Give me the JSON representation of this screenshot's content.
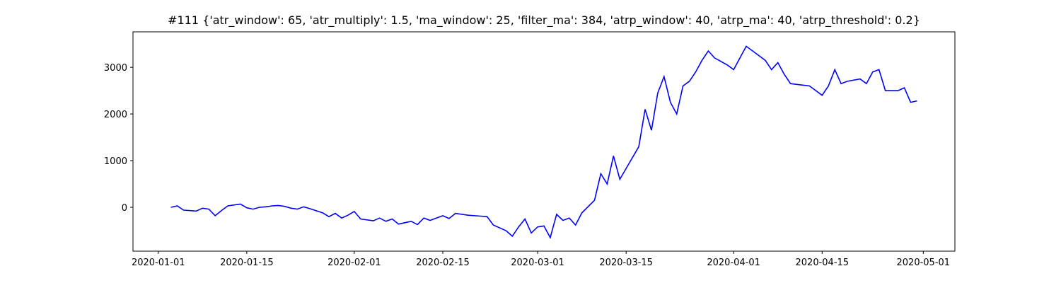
{
  "chart_data": {
    "type": "line",
    "title": "#111 {'atr_window': 65, 'atr_multiply': 1.5, 'ma_window': 25, 'filter_ma': 384, 'atrp_window': 40, 'atrp_ma': 40, 'atrp_threshold': 0.2}",
    "x": [
      "2020-01-03",
      "2020-01-04",
      "2020-01-05",
      "2020-01-07",
      "2020-01-08",
      "2020-01-09",
      "2020-01-10",
      "2020-01-11",
      "2020-01-12",
      "2020-01-13",
      "2020-01-14",
      "2020-01-15",
      "2020-01-16",
      "2020-01-17",
      "2020-01-18",
      "2020-01-19",
      "2020-01-20",
      "2020-01-21",
      "2020-01-22",
      "2020-01-23",
      "2020-01-24",
      "2020-01-25",
      "2020-01-27",
      "2020-01-28",
      "2020-01-29",
      "2020-01-30",
      "2020-01-31",
      "2020-02-01",
      "2020-02-02",
      "2020-02-04",
      "2020-02-05",
      "2020-02-06",
      "2020-02-07",
      "2020-02-08",
      "2020-02-10",
      "2020-02-11",
      "2020-02-12",
      "2020-02-13",
      "2020-02-15",
      "2020-02-16",
      "2020-02-17",
      "2020-02-19",
      "2020-02-21",
      "2020-02-22",
      "2020-02-23",
      "2020-02-25",
      "2020-02-26",
      "2020-02-27",
      "2020-02-28",
      "2020-02-29",
      "2020-03-01",
      "2020-03-02",
      "2020-03-03",
      "2020-03-04",
      "2020-03-05",
      "2020-03-06",
      "2020-03-07",
      "2020-03-08",
      "2020-03-10",
      "2020-03-11",
      "2020-03-12",
      "2020-03-13",
      "2020-03-14",
      "2020-03-17",
      "2020-03-18",
      "2020-03-19",
      "2020-03-20",
      "2020-03-21",
      "2020-03-22",
      "2020-03-23",
      "2020-03-24",
      "2020-03-25",
      "2020-03-26",
      "2020-03-27",
      "2020-03-28",
      "2020-03-29",
      "2020-03-31",
      "2020-04-01",
      "2020-04-02",
      "2020-04-03",
      "2020-04-04",
      "2020-04-06",
      "2020-04-07",
      "2020-04-08",
      "2020-04-09",
      "2020-04-10",
      "2020-04-13",
      "2020-04-14",
      "2020-04-15",
      "2020-04-16",
      "2020-04-17",
      "2020-04-18",
      "2020-04-19",
      "2020-04-21",
      "2020-04-22",
      "2020-04-23",
      "2020-04-24",
      "2020-04-25",
      "2020-04-27",
      "2020-04-28",
      "2020-04-29",
      "2020-04-30"
    ],
    "series": [
      {
        "color": "#0000ff",
        "values": [
          0,
          30,
          -60,
          -80,
          -20,
          -40,
          -180,
          -70,
          30,
          50,
          70,
          -10,
          -40,
          0,
          10,
          30,
          40,
          20,
          -20,
          -40,
          10,
          -30,
          -120,
          -200,
          -130,
          -230,
          -170,
          -90,
          -250,
          -290,
          -230,
          -300,
          -250,
          -360,
          -300,
          -370,
          -230,
          -280,
          -180,
          -240,
          -130,
          -170,
          -190,
          -200,
          -380,
          -500,
          -620,
          -420,
          -250,
          -550,
          -420,
          -400,
          -650,
          -150,
          -280,
          -230,
          -380,
          -120,
          150,
          720,
          500,
          1100,
          600,
          1300,
          2100,
          1650,
          2450,
          2800,
          2250,
          2000,
          2600,
          2700,
          2900,
          3150,
          3350,
          3200,
          3050,
          2950,
          3200,
          3450,
          3350,
          3150,
          2950,
          3100,
          2850,
          2650,
          2600,
          2500,
          2400,
          2600,
          2950,
          2650,
          2700,
          2750,
          2650,
          2900,
          2950,
          2500,
          2500,
          2560,
          2250,
          2280
        ]
      }
    ],
    "xlim": [
      "2019-12-28",
      "2020-05-06"
    ],
    "xticks": [
      "2020-01-01",
      "2020-01-15",
      "2020-02-01",
      "2020-02-15",
      "2020-03-01",
      "2020-03-15",
      "2020-04-01",
      "2020-04-15",
      "2020-05-01"
    ],
    "ylim": [
      -940,
      3760
    ],
    "yticks": [
      0,
      1000,
      2000,
      3000
    ]
  }
}
